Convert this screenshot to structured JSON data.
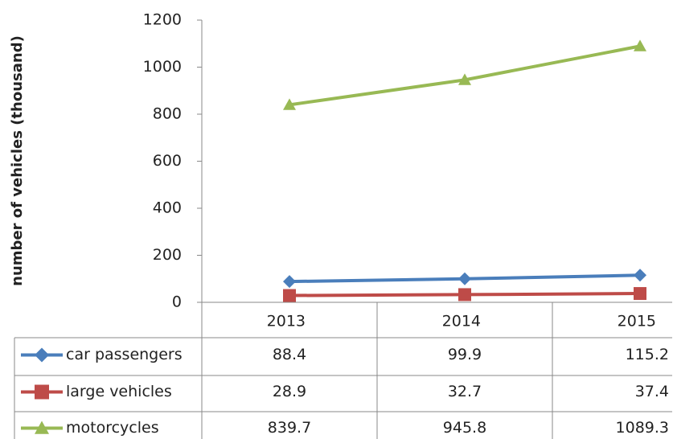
{
  "chart_data": {
    "type": "line",
    "y_label": "number of vehicles (thousand)",
    "categories": [
      "2013",
      "2014",
      "2015"
    ],
    "series": [
      {
        "name": "car passengers",
        "color": "#4a7ebb",
        "marker": "diamond",
        "values": [
          88.4,
          99.9,
          115.2
        ]
      },
      {
        "name": "large vehicles",
        "color": "#be4b48",
        "marker": "square",
        "values": [
          28.9,
          32.7,
          37.4
        ]
      },
      {
        "name": "motorcycles",
        "color": "#98b954",
        "marker": "triangle",
        "values": [
          839.7,
          945.8,
          1089.3
        ]
      }
    ],
    "ylim": [
      0,
      1200
    ],
    "yticks": [
      0,
      200,
      400,
      600,
      800,
      1000,
      1200
    ],
    "grid": false,
    "data_table": true
  }
}
